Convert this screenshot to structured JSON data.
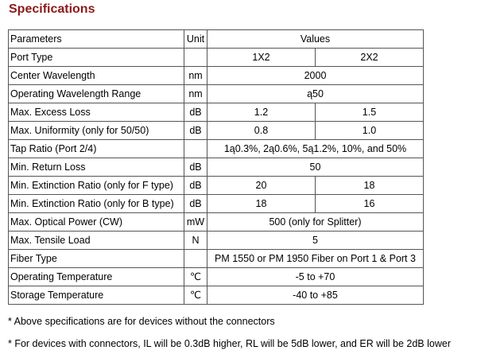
{
  "title": "Specifications",
  "header": {
    "param": "Parameters",
    "unit": "Unit",
    "values": "Values"
  },
  "rows": [
    {
      "param": "Port Type",
      "unit": "",
      "v1": "1X2",
      "v2": "2X2"
    },
    {
      "param": "Center Wavelength",
      "unit": "nm",
      "v": "2000"
    },
    {
      "param": "Operating Wavelength Range",
      "unit": "nm",
      "v": "ą50"
    },
    {
      "param": "Max. Excess Loss",
      "unit": "dB",
      "v1": "1.2",
      "v2": "1.5"
    },
    {
      "param": "Max. Uniformity (only for 50/50)",
      "unit": "dB",
      "v1": "0.8",
      "v2": "1.0"
    },
    {
      "param": "Tap Ratio (Port 2/4)",
      "unit": "",
      "v": "1ą0.3%, 2ą0.6%, 5ą1.2%, 10%, and 50%"
    },
    {
      "param": "Min. Return Loss",
      "unit": "dB",
      "v": "50"
    },
    {
      "param": "Min. Extinction Ratio (only for F type)",
      "unit": "dB",
      "v1": "20",
      "v2": "18"
    },
    {
      "param": "Min. Extinction Ratio (only for B type)",
      "unit": "dB",
      "v1": "18",
      "v2": "16"
    },
    {
      "param": "Max. Optical Power (CW)",
      "unit": "mW",
      "v": "500 (only for Splitter)"
    },
    {
      "param": "Max. Tensile Load",
      "unit": "N",
      "v": "5"
    },
    {
      "param": "Fiber Type",
      "unit": "",
      "v": "PM 1550 or PM 1950 Fiber on Port 1 & Port 3"
    },
    {
      "param": "Operating Temperature",
      "unit": "℃",
      "v": "-5 to +70"
    },
    {
      "param": "Storage Temperature",
      "unit": "℃",
      "v": "-40 to +85"
    }
  ],
  "notes": [
    "* Above specifications are for devices without the connectors",
    "* For devices with connectors, IL will be 0.3dB higher, RL will be 5dB lower, and ER will be 2dB lower"
  ]
}
